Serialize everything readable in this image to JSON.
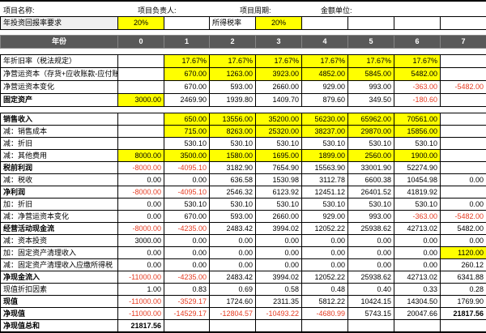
{
  "colors": {
    "highlight": "#ffff00",
    "header_bg": "#595959",
    "header_text": "#ffffff",
    "negative_text": "#e53a21",
    "grid": "#000000"
  },
  "top_bar": {
    "project_name_label": "项目名称:",
    "manager_label": "项目负责人:",
    "period_label": "项目周期:",
    "unit_label": "金额单位:"
  },
  "rate_row": {
    "label": "年投资回报率要求",
    "cells": [
      {
        "v": "20%",
        "bg": "y",
        "align": "c"
      },
      {},
      {
        "v": "所得税率",
        "align": "l"
      },
      {
        "v": "20%",
        "bg": "y",
        "align": "c"
      },
      {},
      {},
      {},
      {}
    ]
  },
  "year_header": {
    "label": "年份",
    "years": [
      "0",
      "1",
      "2",
      "3",
      "4",
      "5",
      "6",
      "7"
    ]
  },
  "sections": [
    {
      "name": "assets-and-working-capital",
      "rows": [
        {
          "label": "年折旧率（税法规定）",
          "cells": [
            {},
            {
              "v": "17.67%",
              "bg": "y"
            },
            {
              "v": "17.67%",
              "bg": "y"
            },
            {
              "v": "17.67%",
              "bg": "y"
            },
            {
              "v": "17.67%",
              "bg": "y"
            },
            {
              "v": "17.67%",
              "bg": "y"
            },
            {
              "v": "17.67%",
              "bg": "y"
            },
            {}
          ]
        },
        {
          "label": "净营运资本（存货+应收账款-应付账款）",
          "cells": [
            {},
            {
              "v": "670.00",
              "bg": "y"
            },
            {
              "v": "1263.00",
              "bg": "y"
            },
            {
              "v": "3923.00",
              "bg": "y"
            },
            {
              "v": "4852.00",
              "bg": "y"
            },
            {
              "v": "5845.00",
              "bg": "y"
            },
            {
              "v": "5482.00",
              "bg": "y"
            },
            {}
          ]
        },
        {
          "label": "净营运资本变化",
          "cells": [
            {},
            {
              "v": "670.00"
            },
            {
              "v": "593.00"
            },
            {
              "v": "2660.00"
            },
            {
              "v": "929.00"
            },
            {
              "v": "993.00"
            },
            {
              "v": "-363.00",
              "c": "r"
            },
            {
              "v": "-5482.00",
              "c": "r"
            }
          ]
        },
        {
          "label": "固定资产",
          "b": 1,
          "cells": [
            {
              "v": "3000.00",
              "bg": "y"
            },
            {
              "v": "2469.90"
            },
            {
              "v": "1939.80"
            },
            {
              "v": "1409.70"
            },
            {
              "v": "879.60"
            },
            {
              "v": "349.50"
            },
            {
              "v": "-180.60",
              "c": "r"
            },
            {}
          ]
        }
      ]
    },
    {
      "name": "income-and-cash-flow",
      "rows": [
        {
          "label": "销售收入",
          "b": 1,
          "cells": [
            {},
            {
              "v": "650.00",
              "bg": "y"
            },
            {
              "v": "13556.00",
              "bg": "y"
            },
            {
              "v": "35200.00",
              "bg": "y"
            },
            {
              "v": "56230.00",
              "bg": "y"
            },
            {
              "v": "65962.00",
              "bg": "y"
            },
            {
              "v": "70561.00",
              "bg": "y"
            },
            {}
          ]
        },
        {
          "label": "减：销售成本",
          "cells": [
            {},
            {
              "v": "715.00",
              "bg": "y"
            },
            {
              "v": "8263.00",
              "bg": "y"
            },
            {
              "v": "25320.00",
              "bg": "y"
            },
            {
              "v": "38237.00",
              "bg": "y"
            },
            {
              "v": "29870.00",
              "bg": "y"
            },
            {
              "v": "15856.00",
              "bg": "y"
            },
            {}
          ]
        },
        {
          "label": "减：折旧",
          "cells": [
            {},
            {
              "v": "530.10"
            },
            {
              "v": "530.10"
            },
            {
              "v": "530.10"
            },
            {
              "v": "530.10"
            },
            {
              "v": "530.10"
            },
            {
              "v": "530.10"
            },
            {}
          ]
        },
        {
          "label": "减：其他费用",
          "cells": [
            {
              "v": "8000.00",
              "bg": "y"
            },
            {
              "v": "3500.00",
              "bg": "y"
            },
            {
              "v": "1580.00",
              "bg": "y"
            },
            {
              "v": "1695.00",
              "bg": "y"
            },
            {
              "v": "1899.00",
              "bg": "y"
            },
            {
              "v": "2560.00",
              "bg": "y"
            },
            {
              "v": "1900.00",
              "bg": "y"
            },
            {}
          ]
        },
        {
          "label": "税前利润",
          "b": 1,
          "cells": [
            {
              "v": "-8000.00",
              "c": "r"
            },
            {
              "v": "-4095.10",
              "c": "r"
            },
            {
              "v": "3182.90"
            },
            {
              "v": "7654.90"
            },
            {
              "v": "15563.90"
            },
            {
              "v": "33001.90"
            },
            {
              "v": "52274.90"
            },
            {}
          ]
        },
        {
          "label": "减：税收",
          "cells": [
            {
              "v": "0.00"
            },
            {
              "v": "0.00"
            },
            {
              "v": "636.58"
            },
            {
              "v": "1530.98"
            },
            {
              "v": "3112.78"
            },
            {
              "v": "6600.38"
            },
            {
              "v": "10454.98"
            },
            {
              "v": "0.00"
            }
          ]
        },
        {
          "label": "净利润",
          "b": 1,
          "cells": [
            {
              "v": "-8000.00",
              "c": "r"
            },
            {
              "v": "-4095.10",
              "c": "r"
            },
            {
              "v": "2546.32"
            },
            {
              "v": "6123.92"
            },
            {
              "v": "12451.12"
            },
            {
              "v": "26401.52"
            },
            {
              "v": "41819.92"
            },
            {}
          ]
        },
        {
          "label": "加：折旧",
          "cells": [
            {
              "v": "0.00"
            },
            {
              "v": "530.10"
            },
            {
              "v": "530.10"
            },
            {
              "v": "530.10"
            },
            {
              "v": "530.10"
            },
            {
              "v": "530.10"
            },
            {
              "v": "530.10"
            },
            {
              "v": "0.00"
            }
          ]
        },
        {
          "label": "减：净营运资本变化",
          "cells": [
            {
              "v": "0.00"
            },
            {
              "v": "670.00"
            },
            {
              "v": "593.00"
            },
            {
              "v": "2660.00"
            },
            {
              "v": "929.00"
            },
            {
              "v": "993.00"
            },
            {
              "v": "-363.00",
              "c": "r"
            },
            {
              "v": "-5482.00",
              "c": "r"
            }
          ]
        },
        {
          "label": "经营活动现金流",
          "b": 1,
          "cells": [
            {
              "v": "-8000.00",
              "c": "r"
            },
            {
              "v": "-4235.00",
              "c": "r"
            },
            {
              "v": "2483.42"
            },
            {
              "v": "3994.02"
            },
            {
              "v": "12052.22"
            },
            {
              "v": "25938.62"
            },
            {
              "v": "42713.02"
            },
            {
              "v": "5482.00"
            }
          ]
        },
        {
          "label": "减：资本投资",
          "cells": [
            {
              "v": "3000.00"
            },
            {
              "v": "0.00"
            },
            {
              "v": "0.00"
            },
            {
              "v": "0.00"
            },
            {
              "v": "0.00"
            },
            {
              "v": "0.00"
            },
            {
              "v": "0.00"
            },
            {
              "v": "0.00"
            }
          ]
        },
        {
          "label": "加：固定资产清理收入",
          "cells": [
            {
              "v": "0.00"
            },
            {
              "v": "0.00"
            },
            {
              "v": "0.00"
            },
            {
              "v": "0.00"
            },
            {
              "v": "0.00"
            },
            {
              "v": "0.00"
            },
            {
              "v": "0.00"
            },
            {
              "v": "1120.00",
              "bg": "y"
            }
          ]
        },
        {
          "label": "减：固定资产清理收入应缴所得税",
          "cells": [
            {
              "v": "0.00"
            },
            {
              "v": "0.00"
            },
            {
              "v": "0.00"
            },
            {
              "v": "0.00"
            },
            {
              "v": "0.00"
            },
            {
              "v": "0.00"
            },
            {
              "v": "0.00"
            },
            {
              "v": "260.12"
            }
          ]
        },
        {
          "label": "净现金流入",
          "b": 1,
          "cells": [
            {
              "v": "-11000.00",
              "c": "r"
            },
            {
              "v": "-4235.00",
              "c": "r"
            },
            {
              "v": "2483.42"
            },
            {
              "v": "3994.02"
            },
            {
              "v": "12052.22"
            },
            {
              "v": "25938.62"
            },
            {
              "v": "42713.02"
            },
            {
              "v": "6341.88"
            }
          ]
        },
        {
          "label": "现值折扣因素",
          "cells": [
            {
              "v": "1.00"
            },
            {
              "v": "0.83"
            },
            {
              "v": "0.69"
            },
            {
              "v": "0.58"
            },
            {
              "v": "0.48"
            },
            {
              "v": "0.40"
            },
            {
              "v": "0.33"
            },
            {
              "v": "0.28"
            }
          ]
        },
        {
          "label": "现值",
          "b": 1,
          "cells": [
            {
              "v": "-11000.00",
              "c": "r"
            },
            {
              "v": "-3529.17",
              "c": "r"
            },
            {
              "v": "1724.60"
            },
            {
              "v": "2311.35"
            },
            {
              "v": "5812.22"
            },
            {
              "v": "10424.15"
            },
            {
              "v": "14304.50"
            },
            {
              "v": "1769.90"
            }
          ]
        },
        {
          "label": "净现值",
          "b": 1,
          "cells": [
            {
              "v": "-11000.00",
              "c": "r"
            },
            {
              "v": "-14529.17",
              "c": "r"
            },
            {
              "v": "-12804.57",
              "c": "r"
            },
            {
              "v": "-10493.22",
              "c": "r"
            },
            {
              "v": "-4680.99",
              "c": "r"
            },
            {
              "v": "5743.15"
            },
            {
              "v": "20047.66"
            },
            {
              "v": "21817.56",
              "b": 1
            }
          ]
        },
        {
          "label": "净现值总和",
          "b": 1,
          "cells": [
            {
              "v": "21817.56",
              "b": 1
            },
            {},
            {},
            {},
            {},
            {},
            {},
            {}
          ]
        }
      ]
    }
  ]
}
